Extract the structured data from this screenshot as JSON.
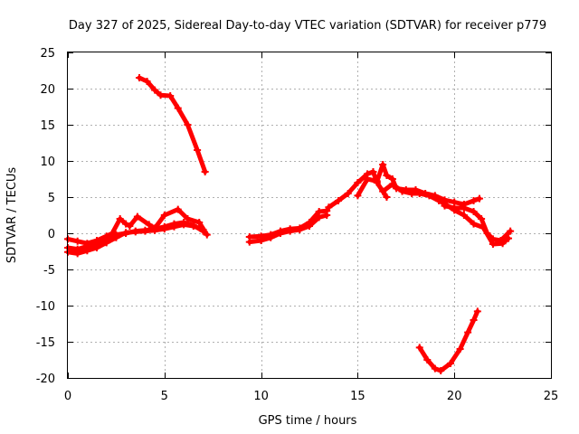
{
  "chart_data": {
    "type": "line",
    "title": "Day 327 of 2025, Sidereal Day-to-day VTEC variation (SDTVAR) for receiver p779",
    "xlabel": "GPS time / hours",
    "ylabel": "SDTVAR / TECUs",
    "xlim": [
      0,
      25
    ],
    "ylim": [
      -20,
      25
    ],
    "xticks": [
      0,
      5,
      10,
      15,
      20,
      25
    ],
    "yticks": [
      -20,
      -15,
      -10,
      -5,
      0,
      5,
      10,
      15,
      20,
      25
    ],
    "xtick_labels": [
      "0",
      "5",
      "10",
      "15",
      "20",
      "25"
    ],
    "ytick_labels": [
      "-20",
      "-15",
      "-10",
      "-5",
      "0",
      "5",
      "10",
      "15",
      "20",
      "25"
    ],
    "grid": true,
    "color": "#ff0000",
    "marker": "plus",
    "series": [
      {
        "name": "s1",
        "points": [
          [
            0.0,
            -2.0
          ],
          [
            0.5,
            -2.2
          ],
          [
            1.0,
            -1.8
          ],
          [
            1.5,
            -1.4
          ],
          [
            2.0,
            -0.8
          ],
          [
            2.5,
            -0.2
          ],
          [
            3.0,
            0.0
          ],
          [
            3.5,
            0.3
          ],
          [
            4.0,
            0.4
          ],
          [
            4.5,
            0.6
          ],
          [
            5.0,
            0.9
          ],
          [
            5.5,
            1.3
          ],
          [
            6.0,
            1.5
          ],
          [
            6.5,
            1.1
          ],
          [
            7.0,
            0.3
          ]
        ]
      },
      {
        "name": "s2",
        "points": [
          [
            0.0,
            -0.8
          ],
          [
            0.5,
            -1.1
          ],
          [
            1.0,
            -1.4
          ],
          [
            1.5,
            -1.0
          ],
          [
            2.0,
            -0.4
          ],
          [
            2.3,
            0.0
          ],
          [
            2.7,
            2.0
          ],
          [
            3.0,
            1.3
          ],
          [
            3.2,
            1.0
          ],
          [
            3.6,
            2.3
          ],
          [
            4.2,
            1.2
          ],
          [
            4.5,
            0.7
          ],
          [
            5.0,
            2.5
          ],
          [
            5.7,
            3.3
          ],
          [
            6.2,
            2.0
          ],
          [
            6.8,
            1.5
          ],
          [
            7.2,
            -0.2
          ]
        ]
      },
      {
        "name": "s3",
        "points": [
          [
            0.0,
            -2.6
          ],
          [
            0.5,
            -2.8
          ],
          [
            1.0,
            -2.4
          ],
          [
            1.5,
            -2.0
          ],
          [
            2.0,
            -1.3
          ],
          [
            2.5,
            -0.6
          ],
          [
            3.0,
            0.1
          ],
          [
            3.5,
            0.2
          ],
          [
            4.0,
            0.3
          ],
          [
            4.5,
            0.4
          ],
          [
            5.0,
            0.6
          ],
          [
            5.5,
            0.9
          ],
          [
            6.0,
            1.2
          ],
          [
            6.5,
            1.0
          ],
          [
            7.0,
            0.5
          ]
        ]
      },
      {
        "name": "s4",
        "points": [
          [
            3.7,
            21.5
          ],
          [
            4.1,
            21.0
          ],
          [
            4.5,
            19.8
          ],
          [
            4.8,
            19.1
          ],
          [
            5.3,
            19.0
          ],
          [
            5.7,
            17.3
          ],
          [
            6.2,
            15.0
          ],
          [
            6.7,
            11.5
          ],
          [
            7.1,
            8.5
          ]
        ]
      },
      {
        "name": "s5",
        "points": [
          [
            9.4,
            -0.5
          ],
          [
            10.0,
            -0.4
          ],
          [
            10.5,
            -0.2
          ],
          [
            11.0,
            0.3
          ],
          [
            11.5,
            0.6
          ],
          [
            12.0,
            0.7
          ],
          [
            12.5,
            1.5
          ],
          [
            13.0,
            3.0
          ],
          [
            13.4,
            3.1
          ],
          [
            13.5,
            3.6
          ],
          [
            14.0,
            4.5
          ],
          [
            14.5,
            5.5
          ],
          [
            15.0,
            7.0
          ],
          [
            15.5,
            8.2
          ],
          [
            15.8,
            8.5
          ],
          [
            16.0,
            7.0
          ],
          [
            16.5,
            5.0
          ]
        ]
      },
      {
        "name": "s6",
        "points": [
          [
            9.4,
            -1.2
          ],
          [
            10.0,
            -1.0
          ],
          [
            10.5,
            -0.6
          ],
          [
            11.0,
            0.0
          ],
          [
            11.5,
            0.3
          ],
          [
            12.0,
            0.5
          ],
          [
            12.5,
            1.0
          ],
          [
            13.0,
            2.2
          ],
          [
            13.4,
            2.5
          ]
        ]
      },
      {
        "name": "s7",
        "points": [
          [
            15.0,
            5.2
          ],
          [
            15.5,
            7.5
          ],
          [
            16.0,
            7.2
          ],
          [
            16.3,
            9.5
          ],
          [
            16.5,
            8.0
          ],
          [
            16.8,
            7.5
          ],
          [
            17.0,
            6.2
          ],
          [
            17.5,
            6.0
          ],
          [
            18.0,
            6.0
          ],
          [
            18.5,
            5.5
          ],
          [
            19.0,
            5.2
          ],
          [
            19.5,
            4.6
          ],
          [
            20.0,
            4.3
          ],
          [
            20.5,
            4.0
          ],
          [
            21.0,
            4.5
          ],
          [
            21.3,
            4.8
          ]
        ]
      },
      {
        "name": "s8",
        "points": [
          [
            16.3,
            5.8
          ],
          [
            16.8,
            6.8
          ],
          [
            17.3,
            5.8
          ],
          [
            17.8,
            5.5
          ],
          [
            18.2,
            5.5
          ],
          [
            18.7,
            5.2
          ],
          [
            19.2,
            4.5
          ],
          [
            19.6,
            3.9
          ],
          [
            20.0,
            3.2
          ],
          [
            20.5,
            2.5
          ],
          [
            21.0,
            1.3
          ],
          [
            21.5,
            0.8
          ],
          [
            22.0,
            -1.5
          ],
          [
            22.5,
            -1.4
          ],
          [
            22.8,
            -0.7
          ]
        ]
      },
      {
        "name": "s9",
        "points": [
          [
            19.5,
            3.8
          ],
          [
            20.0,
            3.5
          ],
          [
            20.5,
            3.5
          ],
          [
            21.0,
            3.0
          ],
          [
            21.4,
            2.0
          ],
          [
            21.7,
            0.0
          ],
          [
            22.0,
            -0.8
          ],
          [
            22.4,
            -1.0
          ],
          [
            22.9,
            0.3
          ]
        ]
      },
      {
        "name": "s10",
        "points": [
          [
            18.2,
            -15.8
          ],
          [
            18.6,
            -17.5
          ],
          [
            19.0,
            -18.7
          ],
          [
            19.3,
            -19.0
          ],
          [
            19.8,
            -18.0
          ],
          [
            20.3,
            -16.0
          ],
          [
            20.7,
            -13.7
          ],
          [
            21.0,
            -12.0
          ],
          [
            21.2,
            -10.8
          ]
        ]
      }
    ]
  }
}
